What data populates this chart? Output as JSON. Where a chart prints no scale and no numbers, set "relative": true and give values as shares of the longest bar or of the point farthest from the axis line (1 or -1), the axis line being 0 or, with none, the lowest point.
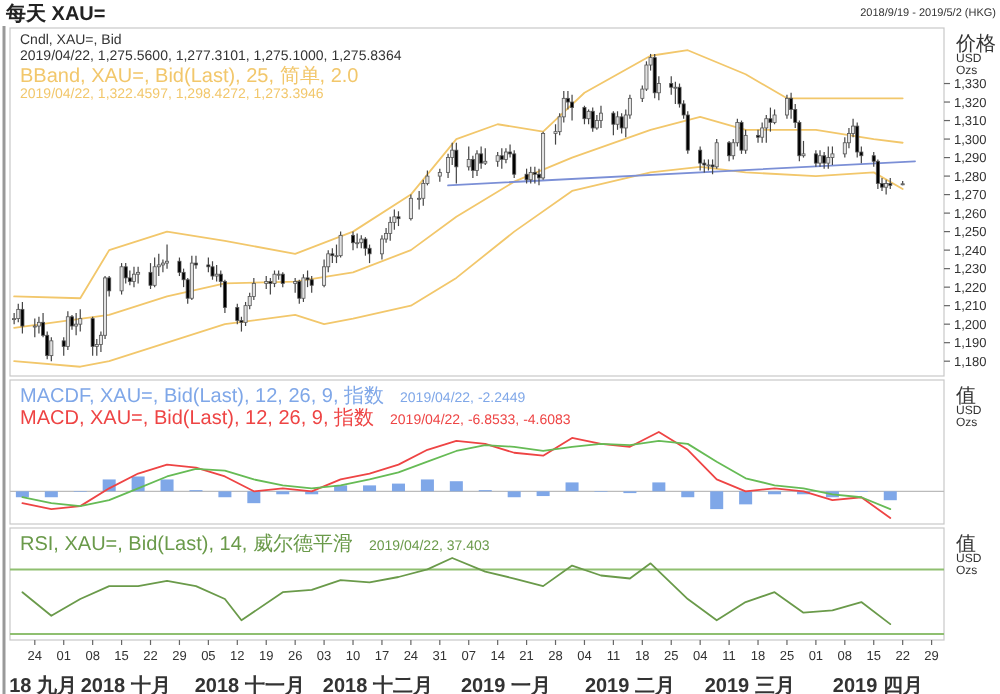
{
  "chart_data": [
    {
      "type": "candlestick",
      "title": "每天 XAU=",
      "subtitle": "2018/9/19 - 2019/5/2 (HKG)",
      "ylabel": "价格 USD Ozs",
      "annotations": [
        "Cndl, XAU=, Bid",
        "2019/04/22, 1,275.5600, 1,277.3101, 1,275.1000, 1,275.8364",
        "BBand, XAU=, Bid(Last), 25, 简单, 2.0",
        "2019/04/22, 1,322.4597, 1,298.4272, 1,273.3946"
      ],
      "xlim": [
        "2018-09-18",
        "2019-05-02"
      ],
      "ylim": [
        1172,
        1360
      ],
      "yticks": [
        {
          "value": 1180,
          "label": "1,180"
        },
        {
          "value": 1190,
          "label": "1,190"
        },
        {
          "value": 1200,
          "label": "1,200"
        },
        {
          "value": 1210,
          "label": "1,210"
        },
        {
          "value": 1220,
          "label": "1,220"
        },
        {
          "value": 1230,
          "label": "1,230"
        },
        {
          "value": 1240,
          "label": "1,240"
        },
        {
          "value": 1250,
          "label": "1,250"
        },
        {
          "value": 1260,
          "label": "1,260"
        },
        {
          "value": 1270,
          "label": "1,270"
        },
        {
          "value": 1280,
          "label": "1,280"
        },
        {
          "value": 1290,
          "label": "1,290"
        },
        {
          "value": 1300,
          "label": "1,300"
        },
        {
          "value": 1310,
          "label": "1,310"
        },
        {
          "value": 1320,
          "label": "1,320"
        },
        {
          "value": 1330,
          "label": "1,330"
        }
      ],
      "tick_labels": "y",
      "x": [
        "2018-09-19",
        "2018-09-20",
        "2018-09-21",
        "2018-09-24",
        "2018-09-25",
        "2018-09-26",
        "2018-09-27",
        "2018-09-28",
        "2018-10-01",
        "2018-10-02",
        "2018-10-03",
        "2018-10-04",
        "2018-10-05",
        "2018-10-08",
        "2018-10-09",
        "2018-10-10",
        "2018-10-11",
        "2018-10-12",
        "2018-10-15",
        "2018-10-16",
        "2018-10-17",
        "2018-10-18",
        "2018-10-19",
        "2018-10-22",
        "2018-10-23",
        "2018-10-24",
        "2018-10-25",
        "2018-10-26",
        "2018-10-29",
        "2018-10-30",
        "2018-10-31",
        "2018-11-01",
        "2018-11-02",
        "2018-11-05",
        "2018-11-06",
        "2018-11-07",
        "2018-11-08",
        "2018-11-09",
        "2018-11-12",
        "2018-11-13",
        "2018-11-14",
        "2018-11-15",
        "2018-11-16",
        "2018-11-19",
        "2018-11-20",
        "2018-11-21",
        "2018-11-22",
        "2018-11-23",
        "2018-11-26",
        "2018-11-27",
        "2018-11-28",
        "2018-11-29",
        "2018-11-30",
        "2018-12-03",
        "2018-12-04",
        "2018-12-05",
        "2018-12-06",
        "2018-12-07",
        "2018-12-10",
        "2018-12-11",
        "2018-12-12",
        "2018-12-13",
        "2018-12-14",
        "2018-12-17",
        "2018-12-18",
        "2018-12-19",
        "2018-12-20",
        "2018-12-21",
        "2018-12-24",
        "2018-12-26",
        "2018-12-27",
        "2018-12-28",
        "2018-12-31",
        "2019-01-02",
        "2019-01-03",
        "2019-01-04",
        "2019-01-07",
        "2019-01-08",
        "2019-01-09",
        "2019-01-10",
        "2019-01-11",
        "2019-01-14",
        "2019-01-15",
        "2019-01-16",
        "2019-01-17",
        "2019-01-18",
        "2019-01-21",
        "2019-01-22",
        "2019-01-23",
        "2019-01-24",
        "2019-01-25",
        "2019-01-28",
        "2019-01-29",
        "2019-01-30",
        "2019-01-31",
        "2019-02-01",
        "2019-02-04",
        "2019-02-05",
        "2019-02-06",
        "2019-02-07",
        "2019-02-08",
        "2019-02-11",
        "2019-02-12",
        "2019-02-13",
        "2019-02-14",
        "2019-02-15",
        "2019-02-18",
        "2019-02-19",
        "2019-02-20",
        "2019-02-21",
        "2019-02-22",
        "2019-02-25",
        "2019-02-26",
        "2019-02-27",
        "2019-02-28",
        "2019-03-01",
        "2019-03-04",
        "2019-03-05",
        "2019-03-06",
        "2019-03-07",
        "2019-03-08",
        "2019-03-11",
        "2019-03-12",
        "2019-03-13",
        "2019-03-14",
        "2019-03-15",
        "2019-03-18",
        "2019-03-19",
        "2019-03-20",
        "2019-03-21",
        "2019-03-22",
        "2019-03-25",
        "2019-03-26",
        "2019-03-27",
        "2019-03-28",
        "2019-03-29",
        "2019-04-01",
        "2019-04-02",
        "2019-04-03",
        "2019-04-04",
        "2019-04-05",
        "2019-04-08",
        "2019-04-09",
        "2019-04-10",
        "2019-04-11",
        "2019-04-12",
        "2019-04-15",
        "2019-04-16",
        "2019-04-17",
        "2019-04-18",
        "2019-04-19",
        "2019-04-22"
      ],
      "ohlc": [
        [
          1203,
          1206,
          1200,
          1203
        ],
        [
          1203,
          1211,
          1201,
          1208
        ],
        [
          1208,
          1212,
          1195,
          1199
        ],
        [
          1199,
          1203,
          1193,
          1199
        ],
        [
          1199,
          1204,
          1195,
          1201
        ],
        [
          1201,
          1206,
          1193,
          1194
        ],
        [
          1194,
          1196,
          1181,
          1183
        ],
        [
          1183,
          1193,
          1180,
          1191
        ],
        [
          1191,
          1193,
          1183,
          1188
        ],
        [
          1188,
          1207,
          1186,
          1204
        ],
        [
          1204,
          1205,
          1197,
          1199
        ],
        [
          1199,
          1206,
          1194,
          1200
        ],
        [
          1200,
          1208,
          1196,
          1203
        ],
        [
          1203,
          1204,
          1183,
          1188
        ],
        [
          1188,
          1192,
          1183,
          1189
        ],
        [
          1189,
          1196,
          1185,
          1194
        ],
        [
          1194,
          1226,
          1192,
          1225
        ],
        [
          1225,
          1226,
          1215,
          1218
        ],
        [
          1218,
          1233,
          1216,
          1231
        ],
        [
          1231,
          1233,
          1222,
          1225
        ],
        [
          1225,
          1229,
          1221,
          1223
        ],
        [
          1223,
          1231,
          1220,
          1227
        ],
        [
          1227,
          1231,
          1222,
          1228
        ],
        [
          1228,
          1233,
          1219,
          1221
        ],
        [
          1221,
          1236,
          1220,
          1231
        ],
        [
          1231,
          1238,
          1226,
          1232
        ],
        [
          1232,
          1235,
          1228,
          1233
        ],
        [
          1233,
          1243,
          1230,
          1234
        ],
        [
          1234,
          1236,
          1226,
          1228
        ],
        [
          1228,
          1230,
          1220,
          1224
        ],
        [
          1224,
          1225,
          1211,
          1214
        ],
        [
          1214,
          1237,
          1213,
          1233
        ],
        [
          1233,
          1237,
          1230,
          1232
        ],
        [
          1232,
          1236,
          1228,
          1231
        ],
        [
          1231,
          1234,
          1224,
          1226
        ],
        [
          1226,
          1232,
          1223,
          1227
        ],
        [
          1227,
          1229,
          1220,
          1223
        ],
        [
          1223,
          1224,
          1206,
          1209
        ],
        [
          1209,
          1211,
          1200,
          1202
        ],
        [
          1202,
          1204,
          1196,
          1201
        ],
        [
          1201,
          1212,
          1199,
          1210
        ],
        [
          1210,
          1217,
          1208,
          1215
        ],
        [
          1215,
          1225,
          1213,
          1222
        ],
        [
          1222,
          1226,
          1219,
          1223
        ],
        [
          1223,
          1225,
          1216,
          1222
        ],
        [
          1222,
          1229,
          1220,
          1227
        ],
        [
          1227,
          1229,
          1224,
          1227
        ],
        [
          1227,
          1228,
          1220,
          1222
        ],
        [
          1222,
          1225,
          1217,
          1223
        ],
        [
          1223,
          1224,
          1211,
          1214
        ],
        [
          1214,
          1227,
          1212,
          1225
        ],
        [
          1225,
          1229,
          1220,
          1224
        ],
        [
          1224,
          1226,
          1217,
          1221
        ],
        [
          1221,
          1235,
          1220,
          1231
        ],
        [
          1231,
          1240,
          1228,
          1238
        ],
        [
          1238,
          1241,
          1233,
          1237
        ],
        [
          1237,
          1243,
          1233,
          1237
        ],
        [
          1237,
          1250,
          1236,
          1248
        ],
        [
          1248,
          1250,
          1240,
          1244
        ],
        [
          1244,
          1249,
          1241,
          1244
        ],
        [
          1244,
          1248,
          1241,
          1246
        ],
        [
          1246,
          1247,
          1237,
          1241
        ],
        [
          1241,
          1243,
          1233,
          1238
        ],
        [
          1238,
          1248,
          1235,
          1246
        ],
        [
          1246,
          1252,
          1244,
          1249
        ],
        [
          1249,
          1258,
          1245,
          1255
        ],
        [
          1255,
          1262,
          1251,
          1258
        ],
        [
          1258,
          1261,
          1253,
          1257
        ],
        [
          1257,
          1270,
          1256,
          1268
        ],
        [
          1268,
          1272,
          1262,
          1268
        ],
        [
          1268,
          1278,
          1264,
          1276
        ],
        [
          1276,
          1283,
          1275,
          1280
        ],
        [
          1280,
          1284,
          1277,
          1282
        ],
        [
          1282,
          1292,
          1279,
          1290
        ],
        [
          1290,
          1298,
          1286,
          1294
        ],
        [
          1294,
          1298,
          1276,
          1285
        ],
        [
          1285,
          1296,
          1283,
          1289
        ],
        [
          1289,
          1291,
          1279,
          1283
        ],
        [
          1283,
          1294,
          1280,
          1292
        ],
        [
          1292,
          1296,
          1284,
          1287
        ],
        [
          1287,
          1295,
          1286,
          1288
        ],
        [
          1288,
          1293,
          1285,
          1291
        ],
        [
          1291,
          1295,
          1284,
          1289
        ],
        [
          1289,
          1295,
          1287,
          1293
        ],
        [
          1293,
          1297,
          1290,
          1292
        ],
        [
          1292,
          1294,
          1279,
          1281
        ],
        [
          1281,
          1284,
          1276,
          1278
        ],
        [
          1278,
          1285,
          1276,
          1282
        ],
        [
          1282,
          1285,
          1276,
          1281
        ],
        [
          1281,
          1284,
          1275,
          1279
        ],
        [
          1279,
          1304,
          1278,
          1303
        ],
        [
          1303,
          1308,
          1297,
          1304
        ],
        [
          1304,
          1314,
          1302,
          1312
        ],
        [
          1312,
          1326,
          1309,
          1322
        ],
        [
          1322,
          1326,
          1316,
          1320
        ],
        [
          1320,
          1324,
          1310,
          1317
        ],
        [
          1317,
          1318,
          1308,
          1311
        ],
        [
          1311,
          1316,
          1308,
          1315
        ],
        [
          1315,
          1317,
          1304,
          1306
        ],
        [
          1306,
          1313,
          1305,
          1310
        ],
        [
          1310,
          1318,
          1306,
          1314
        ],
        [
          1314,
          1315,
          1302,
          1308
        ],
        [
          1308,
          1315,
          1305,
          1312
        ],
        [
          1312,
          1314,
          1303,
          1306
        ],
        [
          1306,
          1316,
          1301,
          1313
        ],
        [
          1313,
          1324,
          1311,
          1322
        ],
        [
          1322,
          1329,
          1320,
          1327
        ],
        [
          1327,
          1342,
          1326,
          1340
        ],
        [
          1340,
          1346,
          1337,
          1344
        ],
        [
          1344,
          1346,
          1322,
          1325
        ],
        [
          1325,
          1334,
          1321,
          1330
        ],
        [
          1330,
          1334,
          1324,
          1328
        ],
        [
          1328,
          1331,
          1319,
          1328
        ],
        [
          1328,
          1330,
          1317,
          1319
        ],
        [
          1319,
          1321,
          1311,
          1313
        ],
        [
          1313,
          1315,
          1292,
          1294
        ],
        [
          1294,
          1296,
          1283,
          1287
        ],
        [
          1287,
          1289,
          1282,
          1286
        ],
        [
          1286,
          1289,
          1283,
          1286
        ],
        [
          1286,
          1289,
          1281,
          1285
        ],
        [
          1285,
          1300,
          1284,
          1298
        ],
        [
          1298,
          1299,
          1288,
          1291
        ],
        [
          1291,
          1300,
          1289,
          1298
        ],
        [
          1298,
          1311,
          1296,
          1309
        ],
        [
          1309,
          1310,
          1292,
          1294
        ],
        [
          1294,
          1305,
          1292,
          1302
        ],
        [
          1302,
          1305,
          1298,
          1301
        ],
        [
          1301,
          1309,
          1298,
          1306
        ],
        [
          1306,
          1313,
          1298,
          1311
        ],
        [
          1311,
          1317,
          1304,
          1309
        ],
        [
          1309,
          1316,
          1308,
          1313
        ],
        [
          1313,
          1324,
          1311,
          1322
        ],
        [
          1322,
          1325,
          1311,
          1316
        ],
        [
          1316,
          1319,
          1306,
          1309
        ],
        [
          1309,
          1310,
          1288,
          1291
        ],
        [
          1291,
          1299,
          1290,
          1292
        ],
        [
          1292,
          1294,
          1285,
          1287
        ],
        [
          1287,
          1294,
          1285,
          1291
        ],
        [
          1291,
          1293,
          1284,
          1287
        ],
        [
          1287,
          1296,
          1284,
          1290
        ],
        [
          1290,
          1296,
          1286,
          1292
        ],
        [
          1292,
          1301,
          1290,
          1298
        ],
        [
          1298,
          1306,
          1295,
          1303
        ],
        [
          1303,
          1311,
          1301,
          1307
        ],
        [
          1307,
          1309,
          1290,
          1293
        ],
        [
          1293,
          1296,
          1287,
          1291
        ],
        [
          1291,
          1293,
          1285,
          1288
        ],
        [
          1288,
          1289,
          1273,
          1276
        ],
        [
          1276,
          1279,
          1272,
          1274
        ],
        [
          1274,
          1278,
          1270,
          1276
        ],
        [
          1276,
          1279,
          1273,
          1275
        ],
        [
          1275.56,
          1277.31,
          1275.1,
          1275.84
        ]
      ],
      "series": [
        {
          "type": "line",
          "color": "#f2c76b",
          "x": [
            "2018-09-19",
            "2018-10-05",
            "2018-10-12",
            "2018-10-26",
            "2018-11-09",
            "2018-11-26",
            "2018-12-10",
            "2018-12-24",
            "2019-01-04",
            "2019-01-14",
            "2019-01-25",
            "2019-02-04",
            "2019-02-20",
            "2019-03-01",
            "2019-03-15",
            "2019-03-25",
            "2019-04-05",
            "2019-04-22"
          ],
          "values": [
            1215,
            1214,
            1240,
            1250,
            1245,
            1238,
            1250,
            1270,
            1300,
            1308,
            1304,
            1325,
            1345,
            1348,
            1335,
            1322,
            1322,
            1322
          ]
        },
        {
          "type": "line",
          "color": "#f2c76b",
          "x": [
            "2018-09-19",
            "2018-10-12",
            "2018-10-26",
            "2018-11-09",
            "2018-11-26",
            "2018-12-10",
            "2018-12-24",
            "2019-01-04",
            "2019-01-18",
            "2019-02-01",
            "2019-02-20",
            "2019-03-04",
            "2019-03-15",
            "2019-04-01",
            "2019-04-15",
            "2019-04-22"
          ],
          "values": [
            1198,
            1205,
            1215,
            1222,
            1223,
            1228,
            1240,
            1258,
            1277,
            1290,
            1305,
            1312,
            1305,
            1305,
            1300,
            1298
          ]
        },
        {
          "type": "line",
          "color": "#f2c76b",
          "x": [
            "2018-09-19",
            "2018-10-05",
            "2018-10-12",
            "2018-10-26",
            "2018-11-09",
            "2018-11-26",
            "2018-12-03",
            "2018-12-10",
            "2018-12-24",
            "2019-01-04",
            "2019-01-18",
            "2019-02-01",
            "2019-02-20",
            "2019-03-04",
            "2019-03-15",
            "2019-04-01",
            "2019-04-15",
            "2019-04-22"
          ],
          "values": [
            1180,
            1177,
            1180,
            1190,
            1200,
            1205,
            1200,
            1203,
            1210,
            1225,
            1250,
            1272,
            1282,
            1285,
            1282,
            1280,
            1282,
            1273
          ]
        },
        {
          "type": "line",
          "color": "#7b8fd6",
          "x": [
            "2019-01-02",
            "2019-04-25"
          ],
          "values": [
            1275,
            1288
          ]
        }
      ]
    },
    {
      "type": "bar",
      "relative": true,
      "ylabel": "值 USD Ozs",
      "tick_labels": false,
      "annotations": [
        "MACDF, XAU=, Bid(Last), 12, 26, 9, 指数",
        "2019/04/22, -2.2449",
        "MACD, XAU=, Bid(Last), 12, 26, 9, 指数",
        "2019/04/22, -6.8533, -4.6083"
      ],
      "xlim": [
        "2018-09-18",
        "2019-05-02"
      ],
      "x": [
        "2018-09-21",
        "2018-09-28",
        "2018-10-05",
        "2018-10-12",
        "2018-10-19",
        "2018-10-26",
        "2018-11-02",
        "2018-11-09",
        "2018-11-16",
        "2018-11-23",
        "2018-11-30",
        "2018-12-07",
        "2018-12-14",
        "2018-12-21",
        "2018-12-28",
        "2019-01-04",
        "2019-01-11",
        "2019-01-18",
        "2019-01-25",
        "2019-02-01",
        "2019-02-08",
        "2019-02-15",
        "2019-02-22",
        "2019-03-01",
        "2019-03-08",
        "2019-03-15",
        "2019-03-22",
        "2019-03-29",
        "2019-04-05",
        "2019-04-12",
        "2019-04-19"
      ],
      "series": [
        {
          "type": "bar",
          "color": "#7fa7e8",
          "values": [
            -0.1,
            -0.1,
            0,
            0.2,
            0.25,
            0.2,
            0.02,
            -0.1,
            -0.2,
            -0.05,
            -0.05,
            0.1,
            0.1,
            0.13,
            0.2,
            0.17,
            0.02,
            -0.1,
            -0.08,
            0.15,
            0,
            -0.03,
            0.15,
            -0.1,
            -0.3,
            -0.22,
            -0.05,
            -0.05,
            -0.1,
            0,
            -0.15
          ]
        },
        {
          "type": "line",
          "color": "#ee4444",
          "values": [
            -0.2,
            -0.3,
            -0.25,
            0.05,
            0.3,
            0.45,
            0.4,
            0.25,
            0,
            0.05,
            0,
            0.2,
            0.3,
            0.45,
            0.7,
            0.85,
            0.8,
            0.65,
            0.6,
            0.9,
            0.8,
            0.75,
            1,
            0.7,
            0.2,
            0,
            0.05,
            0,
            -0.15,
            -0.1,
            -0.45
          ]
        },
        {
          "type": "line",
          "color": "#66bb55",
          "values": [
            -0.1,
            -0.2,
            -0.25,
            -0.15,
            0.05,
            0.25,
            0.38,
            0.35,
            0.2,
            0.1,
            0.05,
            0.1,
            0.2,
            0.32,
            0.5,
            0.68,
            0.78,
            0.75,
            0.68,
            0.75,
            0.8,
            0.78,
            0.85,
            0.8,
            0.5,
            0.22,
            0.1,
            0.05,
            -0.05,
            -0.1,
            -0.3
          ]
        }
      ]
    },
    {
      "type": "line",
      "relative": true,
      "ylabel": "值 USD Ozs",
      "tick_labels": "x",
      "color": "#6a9a4a",
      "annotations": [
        "RSI, XAU=, Bid(Last), 14, 威尔德平滑",
        "2019/04/22, 37.403"
      ],
      "xlim": [
        "2018-09-18",
        "2019-05-02"
      ],
      "x": [
        "2018-09-21",
        "2018-09-28",
        "2018-10-05",
        "2018-10-12",
        "2018-10-19",
        "2018-10-26",
        "2018-11-02",
        "2018-11-09",
        "2018-11-13",
        "2018-11-23",
        "2018-11-30",
        "2018-12-07",
        "2018-12-14",
        "2018-12-21",
        "2018-12-28",
        "2019-01-03",
        "2019-01-11",
        "2019-01-18",
        "2019-01-25",
        "2019-02-01",
        "2019-02-08",
        "2019-02-15",
        "2019-02-20",
        "2019-03-01",
        "2019-03-08",
        "2019-03-15",
        "2019-03-22",
        "2019-03-29",
        "2019-04-05",
        "2019-04-12",
        "2019-04-19"
      ],
      "values": [
        0.55,
        0.24,
        0.46,
        0.63,
        0.63,
        0.7,
        0.63,
        0.46,
        0.18,
        0.55,
        0.58,
        0.71,
        0.68,
        0.75,
        0.85,
        1.0,
        0.82,
        0.73,
        0.63,
        0.9,
        0.77,
        0.73,
        0.93,
        0.46,
        0.18,
        0.42,
        0.55,
        0.28,
        0.31,
        0.42,
        0.13
      ],
      "x2lim": [
        "2018-09-18",
        "2019-05-02"
      ],
      "ref_lines": [
        {
          "axis": "y",
          "value": 0.85,
          "color": "#8fbf70"
        },
        {
          "axis": "y",
          "value": 0,
          "color": "#8fbf70"
        }
      ],
      "xticks": [
        {
          "value": "2018-09-24",
          "label": "24"
        },
        {
          "value": "2018-10-01",
          "label": "01"
        },
        {
          "value": "2018-10-08",
          "label": "08"
        },
        {
          "value": "2018-10-15",
          "label": "15"
        },
        {
          "value": "2018-10-22",
          "label": "22"
        },
        {
          "value": "2018-10-29",
          "label": "29"
        },
        {
          "value": "2018-11-05",
          "label": "05"
        },
        {
          "value": "2018-11-12",
          "label": "12"
        },
        {
          "value": "2018-11-19",
          "label": "19"
        },
        {
          "value": "2018-11-26",
          "label": "26"
        },
        {
          "value": "2018-12-03",
          "label": "03"
        },
        {
          "value": "2018-12-10",
          "label": "10"
        },
        {
          "value": "2018-12-17",
          "label": "17"
        },
        {
          "value": "2018-12-24",
          "label": "24"
        },
        {
          "value": "2018-12-31",
          "label": "31"
        },
        {
          "value": "2019-01-07",
          "label": "07"
        },
        {
          "value": "2019-01-14",
          "label": "14"
        },
        {
          "value": "2019-01-21",
          "label": "21"
        },
        {
          "value": "2019-01-28",
          "label": "28"
        },
        {
          "value": "2019-02-04",
          "label": "04"
        },
        {
          "value": "2019-02-11",
          "label": "11"
        },
        {
          "value": "2019-02-18",
          "label": "18"
        },
        {
          "value": "2019-02-25",
          "label": "25"
        },
        {
          "value": "2019-03-04",
          "label": "04"
        },
        {
          "value": "2019-03-11",
          "label": "11"
        },
        {
          "value": "2019-03-18",
          "label": "18"
        },
        {
          "value": "2019-03-25",
          "label": "25"
        },
        {
          "value": "2019-04-01",
          "label": "01"
        },
        {
          "value": "2019-04-08",
          "label": "08"
        },
        {
          "value": "2019-04-15",
          "label": "15"
        },
        {
          "value": "2019-04-22",
          "label": "22"
        },
        {
          "value": "2019-04-29",
          "label": "29"
        }
      ],
      "x2ticks": [
        {
          "value": "2018-09-26",
          "label": "18 九月"
        },
        {
          "value": "2018-10-16",
          "label": "2018 十月"
        },
        {
          "value": "2018-11-15",
          "label": "2018 十一月"
        },
        {
          "value": "2018-12-16",
          "label": "2018 十二月"
        },
        {
          "value": "2019-01-16",
          "label": "2019 一月"
        },
        {
          "value": "2019-02-15",
          "label": "2019 二月"
        },
        {
          "value": "2019-03-16",
          "label": "2019 三月"
        },
        {
          "value": "2019-04-16",
          "label": "2019 四月"
        }
      ]
    }
  ]
}
